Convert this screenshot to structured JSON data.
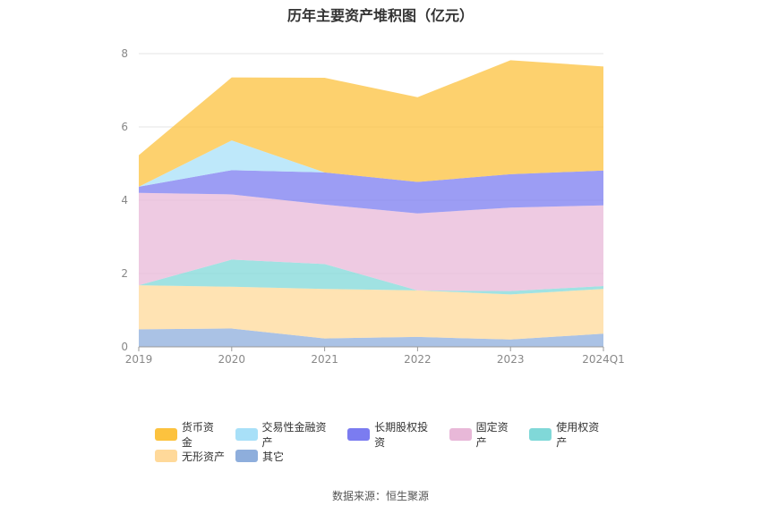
{
  "chart_data": {
    "type": "area",
    "stacked": true,
    "title": "历年主要资产堆积图（亿元）",
    "categories": [
      "2019",
      "2020",
      "2021",
      "2022",
      "2023",
      "2024Q1"
    ],
    "ylim": [
      0,
      8
    ],
    "yticks": [
      0,
      2,
      4,
      6,
      8
    ],
    "grid": true,
    "legend_position": "bottom",
    "series": [
      {
        "name": "其它",
        "color": "#8eaedc",
        "values": [
          0.48,
          0.5,
          0.23,
          0.27,
          0.2,
          0.36
        ]
      },
      {
        "name": "无形资产",
        "color": "#ffd99a",
        "values": [
          1.2,
          1.14,
          1.35,
          1.27,
          1.23,
          1.22
        ]
      },
      {
        "name": "使用权资产",
        "color": "#80d8d8",
        "values": [
          0.0,
          0.74,
          0.68,
          0.0,
          0.09,
          0.08
        ]
      },
      {
        "name": "固定资产",
        "color": "#e8b8d8",
        "values": [
          2.52,
          1.78,
          1.62,
          2.1,
          2.28,
          2.2
        ]
      },
      {
        "name": "长期股权投资",
        "color": "#7b7cf0",
        "values": [
          0.17,
          0.66,
          0.88,
          0.86,
          0.91,
          0.95
        ]
      },
      {
        "name": "交易性金融资产",
        "color": "#a8e0f8",
        "values": [
          0.0,
          0.81,
          0.0,
          0.0,
          0.0,
          0.0
        ]
      },
      {
        "name": "货币资金",
        "color": "#fcc23e",
        "values": [
          0.86,
          1.72,
          2.58,
          2.31,
          3.11,
          2.84
        ]
      }
    ]
  },
  "legend": [
    {
      "label": "货币资金",
      "color": "#fcc23e"
    },
    {
      "label": "交易性金融资产",
      "color": "#a8e0f8"
    },
    {
      "label": "长期股权投资",
      "color": "#7b7cf0"
    },
    {
      "label": "固定资产",
      "color": "#e8b8d8"
    },
    {
      "label": "使用权资产",
      "color": "#80d8d8"
    },
    {
      "label": "无形资产",
      "color": "#ffd99a"
    },
    {
      "label": "其它",
      "color": "#8eaedc"
    }
  ],
  "source": "数据来源：恒生聚源"
}
